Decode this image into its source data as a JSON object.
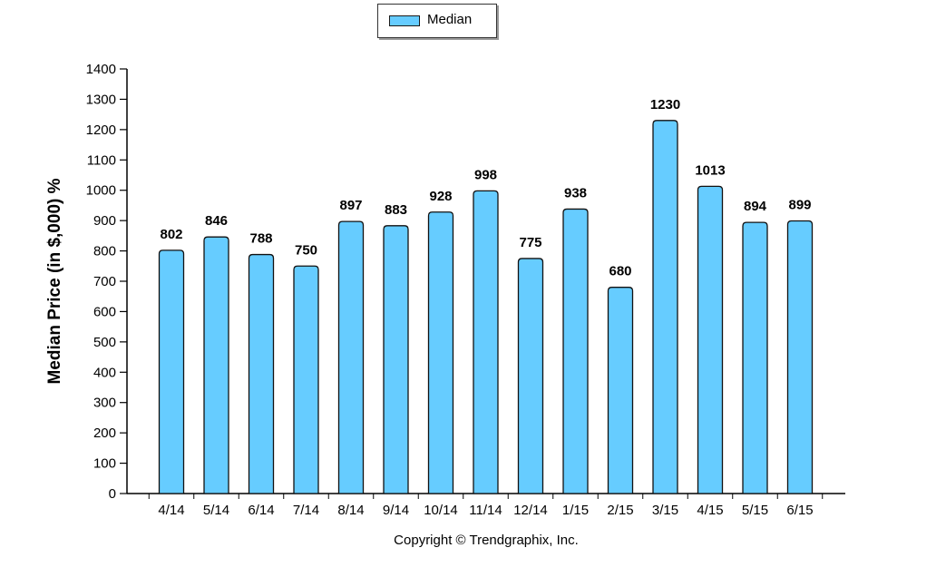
{
  "legend": {
    "label": "Median",
    "swatch_color": "#66ccff"
  },
  "footer": {
    "copyright": "Copyright © Trendgraphix, Inc."
  },
  "chart_data": {
    "type": "bar",
    "title": "",
    "xlabel": "",
    "ylabel": "Median Price (in $,000) %",
    "ylim": [
      0,
      1400
    ],
    "yticks": [
      0,
      100,
      200,
      300,
      400,
      500,
      600,
      700,
      800,
      900,
      1000,
      1100,
      1200,
      1300,
      1400
    ],
    "categories": [
      "4/14",
      "5/14",
      "6/14",
      "7/14",
      "8/14",
      "9/14",
      "10/14",
      "11/14",
      "12/14",
      "1/15",
      "2/15",
      "3/15",
      "4/15",
      "5/15",
      "6/15"
    ],
    "series": [
      {
        "name": "Median",
        "color": "#66ccff",
        "values": [
          802,
          846,
          788,
          750,
          897,
          883,
          928,
          998,
          775,
          938,
          680,
          1230,
          1013,
          894,
          899
        ]
      }
    ],
    "data_labels": true,
    "grid": false,
    "legend_position": "top-center"
  }
}
